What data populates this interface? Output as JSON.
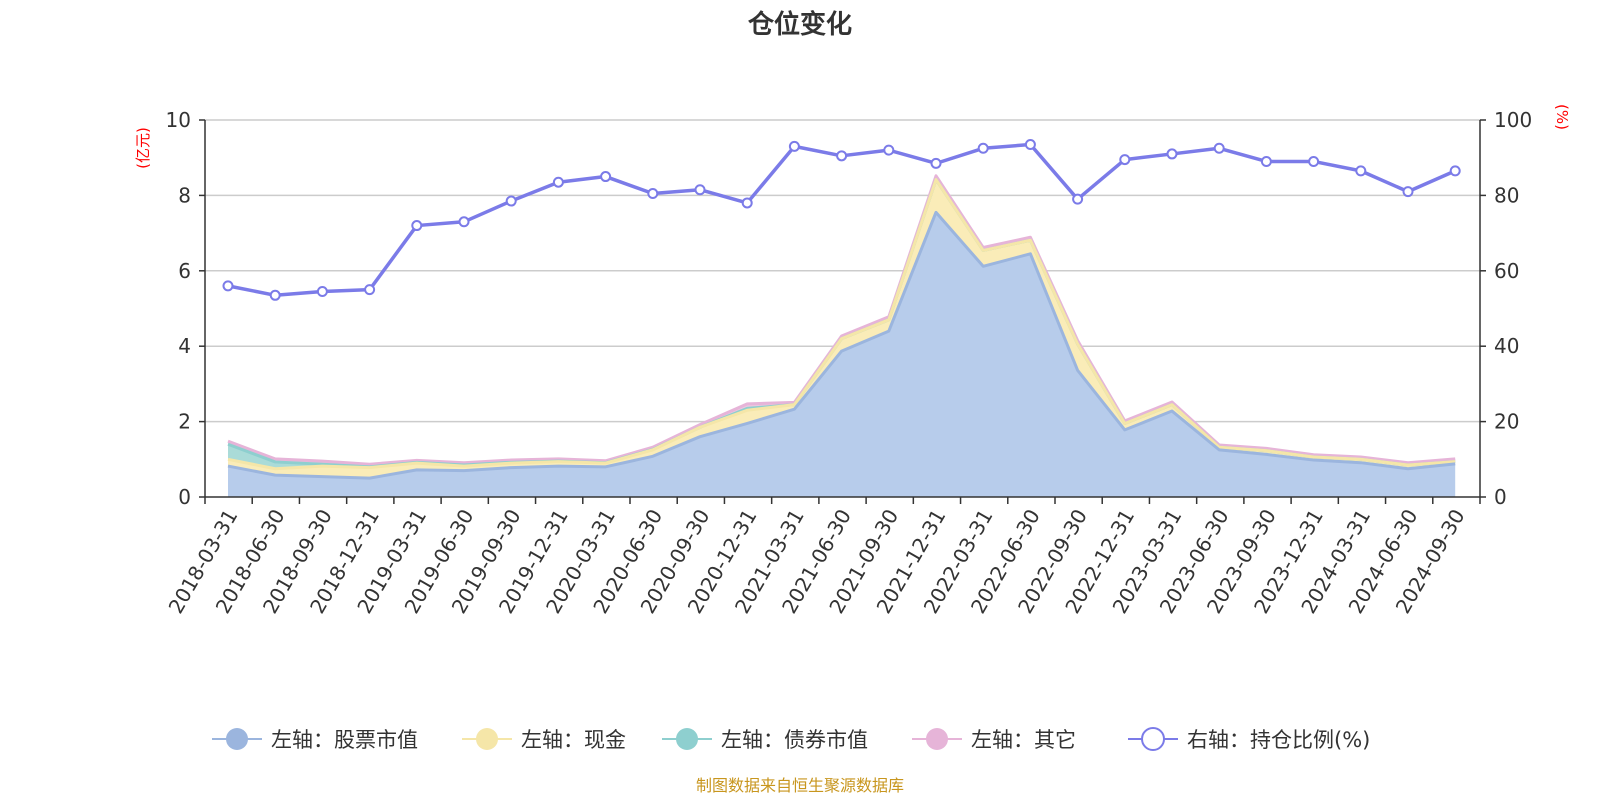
{
  "chart_data": {
    "type": "area",
    "title": "仓位变化",
    "left_unit": "(亿元)",
    "right_unit": "(%)",
    "x": [
      "2018-03-31",
      "2018-06-30",
      "2018-09-30",
      "2018-12-31",
      "2019-03-31",
      "2019-06-30",
      "2019-09-30",
      "2019-12-31",
      "2020-03-31",
      "2020-06-30",
      "2020-09-30",
      "2020-12-31",
      "2021-03-31",
      "2021-06-30",
      "2021-09-30",
      "2021-12-31",
      "2022-03-31",
      "2022-06-30",
      "2022-09-30",
      "2022-12-31",
      "2023-03-31",
      "2023-06-30",
      "2023-09-30",
      "2023-12-31",
      "2024-03-31",
      "2024-06-30",
      "2024-09-30"
    ],
    "left_ylim": [
      0,
      10
    ],
    "left_yticks": [
      0,
      2,
      4,
      6,
      8,
      10
    ],
    "right_ylim": [
      0,
      100
    ],
    "right_yticks": [
      0,
      20,
      40,
      60,
      80,
      100
    ],
    "grid": true,
    "legend_position": "bottom",
    "series": [
      {
        "name": "左轴：股票市值",
        "axis": "left",
        "stack": true,
        "color": "#9bb5de",
        "fill": "#b7cceb",
        "values": [
          0.82,
          0.58,
          0.54,
          0.5,
          0.72,
          0.7,
          0.78,
          0.82,
          0.8,
          1.08,
          1.6,
          1.95,
          2.33,
          3.87,
          4.4,
          7.55,
          6.12,
          6.45,
          3.36,
          1.78,
          2.28,
          1.25,
          1.13,
          0.98,
          0.91,
          0.75,
          0.88
        ]
      },
      {
        "name": "左轴：现金",
        "axis": "left",
        "stack": true,
        "color": "#f5e6a8",
        "fill": "#faecb8",
        "values": [
          0.18,
          0.17,
          0.28,
          0.28,
          0.18,
          0.12,
          0.12,
          0.12,
          0.1,
          0.17,
          0.25,
          0.35,
          0.12,
          0.33,
          0.3,
          0.87,
          0.42,
          0.36,
          0.7,
          0.17,
          0.17,
          0.07,
          0.1,
          0.08,
          0.09,
          0.1,
          0.06
        ]
      },
      {
        "name": "左轴：债券市值",
        "axis": "left",
        "stack": true,
        "color": "#8ecfcf",
        "fill": "#aadbd8",
        "values": [
          0.4,
          0.18,
          0.05,
          0.02,
          0.02,
          0.03,
          0.02,
          0.01,
          0.01,
          0.01,
          0.0,
          0.05,
          0.0,
          0.0,
          0.0,
          0.0,
          0.0,
          0.0,
          0.0,
          0.0,
          0.0,
          0.0,
          0.0,
          0.0,
          0.0,
          0.0,
          0.0
        ]
      },
      {
        "name": "左轴：其它",
        "axis": "left",
        "stack": true,
        "color": "#e6b4d8",
        "fill": "#ecc8e0",
        "values": [
          0.08,
          0.08,
          0.08,
          0.07,
          0.05,
          0.06,
          0.06,
          0.06,
          0.05,
          0.06,
          0.07,
          0.12,
          0.06,
          0.07,
          0.08,
          0.1,
          0.08,
          0.08,
          0.09,
          0.07,
          0.07,
          0.06,
          0.06,
          0.06,
          0.06,
          0.06,
          0.07
        ]
      },
      {
        "name": "右轴：持仓比例(%)",
        "axis": "right",
        "type": "line",
        "color": "#7b7be8",
        "values": [
          56,
          53.5,
          54.5,
          55,
          72,
          73,
          78.5,
          83.5,
          85,
          80.5,
          81.5,
          78,
          93,
          90.5,
          92,
          88.5,
          92.5,
          93.5,
          79,
          89.5,
          91,
          92.5,
          89,
          89,
          86.5,
          81,
          86.5
        ]
      }
    ]
  },
  "footer": {
    "source": "制图数据来自恒生聚源数据库"
  }
}
